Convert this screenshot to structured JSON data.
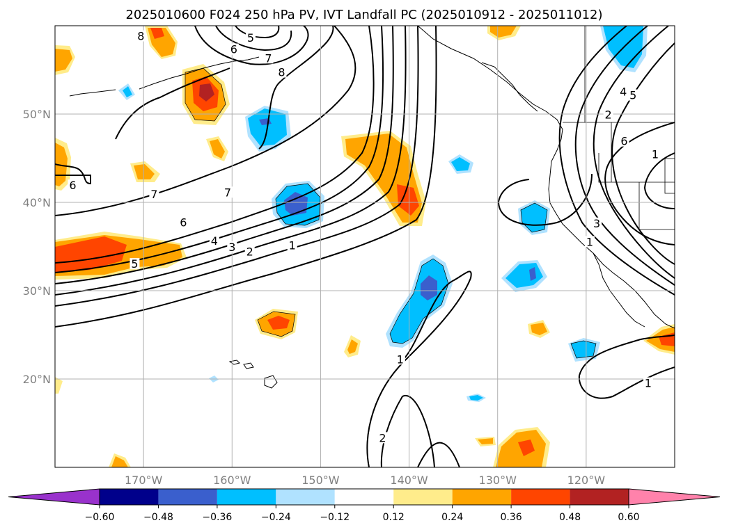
{
  "title": "2025010600 F024 250 hPa PV, IVT Landfall PC (2025010912 - 2025011012)",
  "map": {
    "lon_range": [
      -180,
      -110
    ],
    "lat_range": [
      10,
      60
    ],
    "lon_ticks": [
      {
        "value": -170,
        "label": "170°W"
      },
      {
        "value": -160,
        "label": "160°W"
      },
      {
        "value": -150,
        "label": "150°W"
      },
      {
        "value": -140,
        "label": "140°W"
      },
      {
        "value": -130,
        "label": "130°W"
      },
      {
        "value": -120,
        "label": "120°W"
      }
    ],
    "lat_ticks": [
      {
        "value": 20,
        "label": "20°N"
      },
      {
        "value": 30,
        "label": "30°N"
      },
      {
        "value": 40,
        "label": "40°N"
      },
      {
        "value": 50,
        "label": "50°N"
      }
    ],
    "grid": true,
    "land_color": "#ffffff",
    "ocean_color": "#ffffff"
  },
  "contour_labels": [
    {
      "text": "8",
      "lon": -170.3,
      "lat": 58.7
    },
    {
      "text": "6",
      "lon": -159.8,
      "lat": 57.2
    },
    {
      "text": "5",
      "lon": -157.9,
      "lat": 58.5
    },
    {
      "text": "7",
      "lon": -155.9,
      "lat": 56.2
    },
    {
      "text": "8",
      "lon": -154.4,
      "lat": 54.6
    },
    {
      "text": "6",
      "lon": -178.0,
      "lat": 41.8
    },
    {
      "text": "7",
      "lon": -168.8,
      "lat": 40.8
    },
    {
      "text": "7",
      "lon": -160.5,
      "lat": 41.0
    },
    {
      "text": "6",
      "lon": -165.5,
      "lat": 37.6
    },
    {
      "text": "5",
      "lon": -171.0,
      "lat": 32.9
    },
    {
      "text": "4",
      "lon": -162.0,
      "lat": 35.5
    },
    {
      "text": "3",
      "lon": -160.0,
      "lat": 34.8
    },
    {
      "text": "2",
      "lon": -158.0,
      "lat": 34.3
    },
    {
      "text": "1",
      "lon": -153.2,
      "lat": 35.0
    },
    {
      "text": "1",
      "lon": -141.0,
      "lat": 22.1
    },
    {
      "text": "2",
      "lon": -143.0,
      "lat": 13.2
    },
    {
      "text": "5",
      "lon": -114.7,
      "lat": 52.0
    },
    {
      "text": "4",
      "lon": -115.8,
      "lat": 52.4
    },
    {
      "text": "2",
      "lon": -117.5,
      "lat": 49.8
    },
    {
      "text": "6",
      "lon": -115.7,
      "lat": 46.8
    },
    {
      "text": "1",
      "lon": -112.2,
      "lat": 45.3
    },
    {
      "text": "3",
      "lon": -118.8,
      "lat": 37.5
    },
    {
      "text": "1",
      "lon": -119.6,
      "lat": 35.4
    },
    {
      "text": "1",
      "lon": -113.0,
      "lat": 19.4
    }
  ],
  "colorbar": {
    "levels": [
      -0.6,
      -0.48,
      -0.36,
      -0.24,
      -0.12,
      0.12,
      0.24,
      0.36,
      0.48,
      0.6
    ],
    "tick_labels": [
      "−0.60",
      "−0.48",
      "−0.36",
      "−0.24",
      "−0.12",
      "0.12",
      "0.24",
      "0.36",
      "0.48",
      "0.60"
    ],
    "colors": [
      "#9932cc",
      "#00008b",
      "#3a5fcd",
      "#00bfff",
      "#b0e2ff",
      "#ffffff",
      "#ffec8b",
      "#ffa500",
      "#ff4500",
      "#b22222",
      "#ff82ab"
    ],
    "extend": "both"
  }
}
